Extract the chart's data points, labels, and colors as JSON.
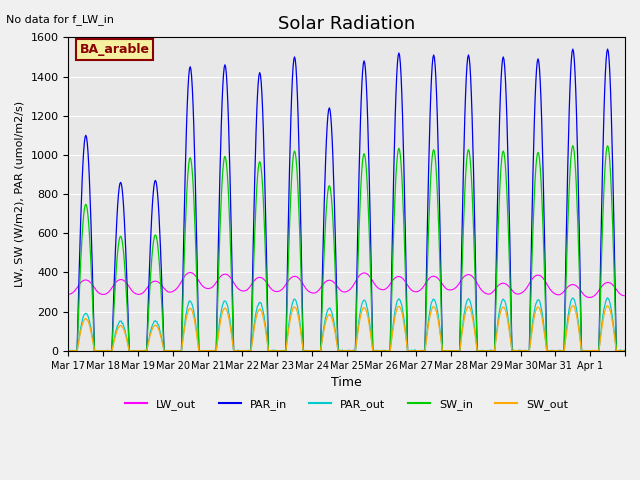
{
  "title": "Solar Radiation",
  "top_left_text": "No data for f_LW_in",
  "legend_label": "BA_arable",
  "xlabel": "Time",
  "ylabel": "LW, SW (W/m2), PAR (umol/m2/s)",
  "ylim": [
    0,
    1600
  ],
  "background_color": "#e8e8e8",
  "line_colors": {
    "LW_out": "#ff00ff",
    "PAR_in": "#0000ee",
    "PAR_out": "#00cccc",
    "SW_in": "#00cc00",
    "SW_out": "#ffaa00"
  },
  "num_days": 16,
  "samples_per_day": 48,
  "day_peaks_PAR_in": [
    1100,
    860,
    870,
    1450,
    1460,
    1420,
    1500,
    1240,
    1480,
    1520,
    1510,
    1510,
    1500,
    1490,
    1540,
    1540
  ],
  "lw_out_base": 310,
  "lw_out_day_rise": 80,
  "tick_labels": [
    "Mar 17",
    "Mar 18",
    "Mar 19",
    "Mar 20",
    "Mar 21",
    "Mar 22",
    "Mar 23",
    "Mar 24",
    "Mar 25",
    "Mar 26",
    "Mar 27",
    "Mar 28",
    "Mar 29",
    "Mar 30",
    "Mar 31",
    "Apr 1",
    ""
  ],
  "yticks": [
    0,
    200,
    400,
    600,
    800,
    1000,
    1200,
    1400,
    1600
  ]
}
